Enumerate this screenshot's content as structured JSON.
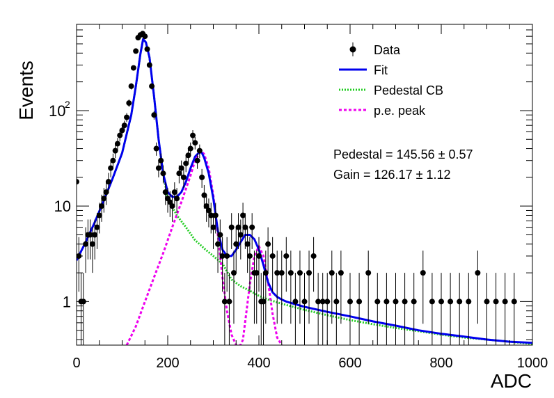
{
  "chart_data": {
    "type": "scatter",
    "title": "",
    "xlabel": "ADC",
    "ylabel": "Events",
    "xlim": [
      0,
      1000
    ],
    "ylim": [
      0.35,
      800
    ],
    "yscale": "log",
    "grid": false,
    "x_ticks": [
      0,
      200,
      400,
      600,
      800,
      1000
    ],
    "x_tick_labels": [
      "0",
      "200",
      "400",
      "600",
      "800",
      "1000"
    ],
    "y_tick_labels": [
      {
        "value": 1,
        "label": "1"
      },
      {
        "value": 10,
        "label": "10"
      },
      {
        "value": 100,
        "label": "10^2"
      }
    ],
    "legend": {
      "position": "top-right",
      "entries": [
        {
          "label": "Data",
          "style": "marker",
          "color": "#000000"
        },
        {
          "label": "Fit",
          "style": "solid",
          "color": "#0000ee"
        },
        {
          "label": "Pedestal CB",
          "style": "dotted",
          "color": "#22cc22"
        },
        {
          "label": "p.e. peak",
          "style": "dashed",
          "color": "#ee00ee"
        }
      ]
    },
    "annotations": [
      "Pedestal = 145.56 ± 0.57",
      "Gain = 126.17 ± 1.12"
    ],
    "fit_parameters": {
      "pedestal": 145.56,
      "pedestal_err": 0.57,
      "gain": 126.17,
      "gain_err": 1.12
    },
    "series": [
      {
        "name": "Data",
        "type": "points_with_errors",
        "x": [
          0,
          5,
          10,
          15,
          20,
          25,
          30,
          35,
          40,
          45,
          50,
          55,
          60,
          65,
          70,
          75,
          80,
          85,
          90,
          95,
          100,
          105,
          110,
          115,
          120,
          125,
          130,
          135,
          140,
          145,
          150,
          155,
          160,
          165,
          170,
          175,
          180,
          185,
          190,
          195,
          200,
          205,
          210,
          215,
          220,
          225,
          230,
          235,
          240,
          245,
          250,
          255,
          260,
          265,
          270,
          275,
          280,
          285,
          290,
          295,
          300,
          305,
          310,
          315,
          320,
          325,
          330,
          335,
          340,
          345,
          350,
          355,
          360,
          365,
          370,
          375,
          380,
          385,
          390,
          395,
          400,
          405,
          410,
          415,
          420,
          430,
          440,
          450,
          460,
          470,
          480,
          490,
          500,
          510,
          520,
          530,
          540,
          550,
          560,
          570,
          580,
          600,
          620,
          640,
          660,
          680,
          700,
          720,
          740,
          760,
          780,
          800,
          820,
          840,
          860,
          880,
          900,
          920,
          940,
          960
        ],
        "y": [
          18,
          3,
          1,
          1,
          4,
          5,
          5,
          4,
          5,
          6,
          8,
          10,
          12,
          14,
          18,
          25,
          30,
          38,
          45,
          55,
          62,
          70,
          85,
          120,
          180,
          280,
          420,
          580,
          620,
          640,
          600,
          440,
          300,
          180,
          90,
          40,
          25,
          30,
          22,
          14,
          12,
          11,
          10,
          14,
          12,
          22,
          25,
          20,
          28,
          34,
          40,
          55,
          46,
          30,
          38,
          20,
          13,
          10,
          9,
          8,
          6,
          8,
          4,
          5,
          3,
          1,
          3,
          1,
          6,
          2,
          4,
          6,
          5,
          8,
          6,
          4,
          3,
          6,
          2,
          2,
          3,
          1,
          1,
          2,
          4,
          3,
          2,
          2,
          3,
          2,
          1,
          2,
          1,
          2,
          3,
          1,
          1,
          1,
          2,
          1,
          2,
          1,
          1,
          2,
          1,
          1,
          1,
          1,
          1,
          2,
          1,
          1,
          1,
          1,
          1,
          2,
          1,
          1,
          1,
          1
        ]
      },
      {
        "name": "Fit",
        "type": "line",
        "x": [
          0,
          20,
          40,
          60,
          80,
          100,
          120,
          130,
          140,
          146,
          152,
          160,
          170,
          180,
          190,
          200,
          210,
          220,
          230,
          240,
          250,
          260,
          270,
          275,
          280,
          290,
          300,
          310,
          320,
          330,
          340,
          350,
          360,
          370,
          380,
          390,
          400,
          410,
          420,
          430,
          440,
          450,
          460,
          500,
          550,
          600,
          650,
          700,
          750,
          800,
          850,
          900,
          950,
          1000
        ],
        "y": [
          2.7,
          4.2,
          6.8,
          11.5,
          20,
          36,
          90,
          180,
          390,
          560,
          520,
          360,
          140,
          50,
          22,
          14,
          12.5,
          12.5,
          14,
          18,
          25,
          33,
          37,
          36,
          32,
          22,
          12,
          5.5,
          3.5,
          3.0,
          3.0,
          3.5,
          4.2,
          5.0,
          5.0,
          4.5,
          3.5,
          2.4,
          1.6,
          1.25,
          1.12,
          1.05,
          1.0,
          0.88,
          0.78,
          0.7,
          0.62,
          0.56,
          0.5,
          0.46,
          0.43,
          0.4,
          0.38,
          0.37
        ]
      },
      {
        "name": "Pedestal CB",
        "type": "line",
        "x": [
          40,
          60,
          80,
          100,
          120,
          130,
          140,
          146,
          152,
          160,
          170,
          180,
          190,
          200,
          220,
          240,
          260,
          280,
          300,
          320,
          340,
          360,
          380,
          400,
          420,
          450,
          500,
          550,
          600,
          650,
          700,
          750,
          800,
          850,
          900,
          950,
          1000
        ],
        "y": [
          6.8,
          11.5,
          20,
          36,
          90,
          180,
          390,
          560,
          520,
          360,
          140,
          50,
          22,
          12,
          8,
          6,
          4.4,
          3.6,
          3.0,
          2.5,
          1.7,
          1.45,
          1.3,
          1.15,
          1.05,
          0.95,
          0.82,
          0.72,
          0.64,
          0.58,
          0.53,
          0.49,
          0.45,
          0.42,
          0.4,
          0.38,
          0.36
        ]
      },
      {
        "name": "p.e. peak",
        "type": "line",
        "x": [
          110,
          130,
          150,
          170,
          190,
          210,
          230,
          250,
          260,
          270,
          275,
          280,
          290,
          300,
          310,
          320,
          330,
          340,
          350,
          360,
          365,
          380,
          390,
          400,
          410,
          420,
          430,
          440,
          450
        ],
        "y": [
          0.35,
          0.55,
          1.0,
          1.8,
          3.2,
          6,
          11,
          21,
          30,
          36.5,
          37,
          35,
          25,
          13,
          5,
          1.8,
          0.8,
          0.45,
          0.35,
          0.35,
          0.4,
          1.5,
          3.0,
          3.8,
          3.0,
          1.6,
          0.75,
          0.42,
          0.35
        ]
      }
    ]
  }
}
